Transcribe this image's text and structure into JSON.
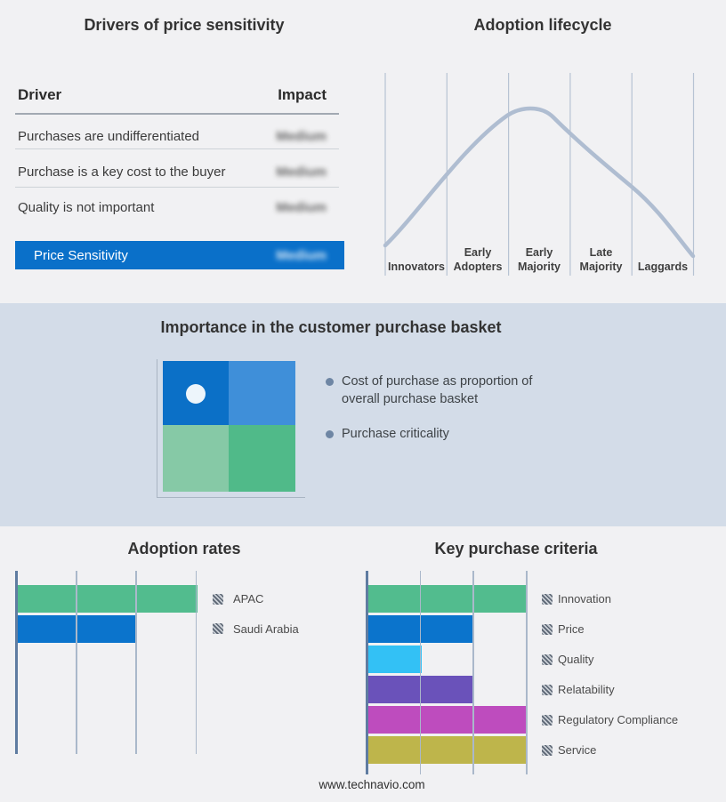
{
  "page": {
    "footer": "www.technavio.com",
    "background_color": "#f1f1f3",
    "band_background_color": "#d3dce8"
  },
  "drivers_panel": {
    "title": "Drivers of price sensitivity",
    "columns": {
      "driver": "Driver",
      "impact": "Impact"
    },
    "rows": [
      {
        "driver": "Purchases are undifferentiated",
        "impact": "Medium"
      },
      {
        "driver": "Purchase is a key cost to the buyer",
        "impact": "Medium"
      },
      {
        "driver": "Quality is not important",
        "impact": "Medium"
      }
    ],
    "summary_row": {
      "label": "Price Sensitivity",
      "impact": "Medium",
      "bar_color": "#0a70c9"
    },
    "impact_values_blurred": true
  },
  "lifecycle_panel": {
    "title": "Adoption lifecycle",
    "stage_lines": [
      [
        "Innovators"
      ],
      [
        "Early",
        "Adopters"
      ],
      [
        "Early",
        "Majority"
      ],
      [
        "Late",
        "Majority"
      ],
      [
        "Laggards"
      ]
    ],
    "curve_color": "#afbdd1"
  },
  "basket_panel": {
    "title": "Importance in the customer purchase basket",
    "bullets": [
      "Cost of purchase as proportion of overall purchase basket",
      "Purchase criticality"
    ],
    "matrix": {
      "top_left_color": "#0b70c7",
      "top_right_color": "#3f8fd9",
      "bottom_left_color": "#86c9a6",
      "bottom_right_color": "#50ba89",
      "marker": "white-dot-in-top-left-quadrant"
    }
  },
  "chart_data": [
    {
      "id": "adoption-lifecycle-curve",
      "type": "line",
      "title": "Adoption lifecycle",
      "categories": [
        "Innovators",
        "Early Adopters",
        "Early Majority",
        "Late Majority",
        "Laggards"
      ],
      "description": "Bell curve rising through Innovators and Early Adopters, peaking over Early Majority, declining through Late Majority and Laggards",
      "grid": "vertical-stage-dividers",
      "curve_color": "#afbdd1"
    },
    {
      "id": "adoption-rates",
      "type": "bar",
      "title": "Adoption rates",
      "orientation": "horizontal",
      "categories": [
        "APAC",
        "Saudi Arabia"
      ],
      "values": [
        3,
        2
      ],
      "xlim": [
        0,
        3
      ],
      "colors": [
        "#52bc8e",
        "#0b74cc"
      ],
      "legend_position": "right",
      "legend_swatch_style": "hatched-gray"
    },
    {
      "id": "key-purchase-criteria",
      "type": "bar",
      "title": "Key purchase criteria",
      "orientation": "horizontal",
      "categories": [
        "Innovation",
        "Price",
        "Quality",
        "Relatability",
        "Regulatory Compliance",
        "Service"
      ],
      "values": [
        3,
        2,
        1,
        2,
        3,
        3
      ],
      "xlim": [
        0,
        3
      ],
      "colors": [
        "#52bc8e",
        "#0b74cc",
        "#33c1f5",
        "#6a52ba",
        "#be4cbe",
        "#beb54b"
      ],
      "legend_position": "right",
      "legend_swatch_style": "hatched-gray"
    }
  ]
}
